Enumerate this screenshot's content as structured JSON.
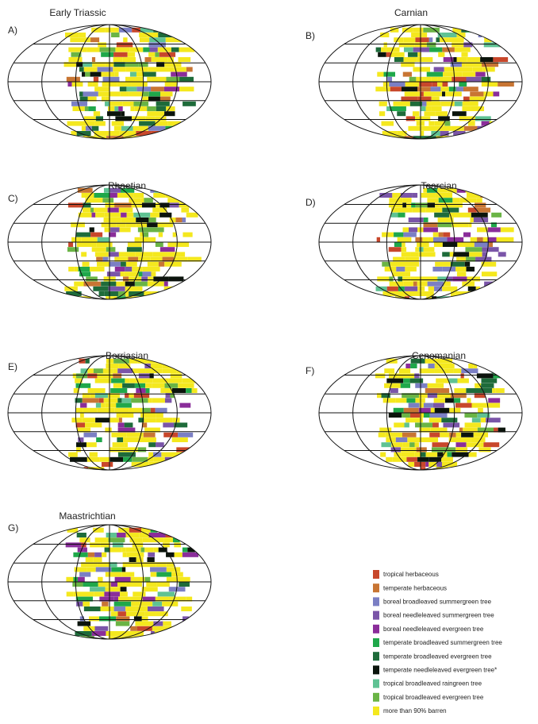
{
  "panels": [
    {
      "label": "A)",
      "title": "Early Triassic"
    },
    {
      "label": "B)",
      "title": "Carnian"
    },
    {
      "label": "C)",
      "title": "Rhaetian"
    },
    {
      "label": "D)",
      "title": "Toarcian"
    },
    {
      "label": "E)",
      "title": "Berriasian"
    },
    {
      "label": "F)",
      "title": "Cenomanian"
    },
    {
      "label": "G)",
      "title": "Maastrichtian"
    }
  ],
  "legend": [
    {
      "label": "tropical herbaceous",
      "color": "#c8472b"
    },
    {
      "label": "temperate herbaceous",
      "color": "#c87533"
    },
    {
      "label": "boreal broadleaved summergreen tree",
      "color": "#7b7fc4"
    },
    {
      "label": "boreal needleleaved summergreen tree",
      "color": "#7a55a8"
    },
    {
      "label": "boreal needleleaved evergreen tree",
      "color": "#8a2d9a"
    },
    {
      "label": "temperate broadleaved summergreen tree",
      "color": "#1fa84a"
    },
    {
      "label": "temperate broadleaved evergreen tree",
      "color": "#1e6b3a"
    },
    {
      "label": "temperate needleleaved evergreen tree*",
      "color": "#0b140c"
    },
    {
      "label": "tropical broadleaved raingreen tree",
      "color": "#5fc293"
    },
    {
      "label": "tropical broadleaved evergreen tree",
      "color": "#6ab445"
    },
    {
      "label": "more than 90% barren",
      "color": "#f4e81e"
    }
  ]
}
